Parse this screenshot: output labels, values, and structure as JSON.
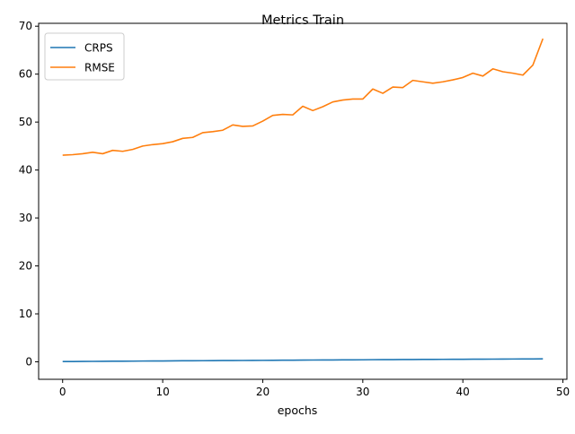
{
  "chart_data": {
    "type": "line",
    "title": "Metrics Train",
    "xlabel": "epochs",
    "ylabel": "",
    "xlim": [
      -2.4,
      50.4
    ],
    "ylim": [
      -3.65,
      70.6
    ],
    "xticks": [
      0,
      10,
      20,
      30,
      40,
      50
    ],
    "yticks": [
      0,
      10,
      20,
      30,
      40,
      50,
      60,
      70
    ],
    "grid": false,
    "legend_position": "top-left",
    "x": [
      0,
      1,
      2,
      3,
      4,
      5,
      6,
      7,
      8,
      9,
      10,
      11,
      12,
      13,
      14,
      15,
      16,
      17,
      18,
      19,
      20,
      21,
      22,
      23,
      24,
      25,
      26,
      27,
      28,
      29,
      30,
      31,
      32,
      33,
      34,
      35,
      36,
      37,
      38,
      39,
      40,
      41,
      42,
      43,
      44,
      45,
      46,
      47,
      48
    ],
    "series": [
      {
        "name": "CRPS",
        "color": "#1f77b4",
        "values": [
          0.05,
          0.06,
          0.08,
          0.09,
          0.1,
          0.12,
          0.13,
          0.14,
          0.16,
          0.17,
          0.18,
          0.2,
          0.21,
          0.22,
          0.23,
          0.24,
          0.26,
          0.27,
          0.28,
          0.29,
          0.3,
          0.32,
          0.33,
          0.34,
          0.36,
          0.37,
          0.38,
          0.39,
          0.4,
          0.41,
          0.42,
          0.44,
          0.45,
          0.46,
          0.47,
          0.48,
          0.49,
          0.5,
          0.51,
          0.52,
          0.53,
          0.55,
          0.55,
          0.56,
          0.57,
          0.58,
          0.59,
          0.6,
          0.62
        ]
      },
      {
        "name": "RMSE",
        "color": "#ff7f0e",
        "values": [
          43.1,
          43.2,
          43.4,
          43.7,
          43.4,
          44.1,
          43.9,
          44.3,
          45.0,
          45.3,
          45.5,
          45.9,
          46.6,
          46.8,
          47.8,
          48.0,
          48.3,
          49.4,
          49.1,
          49.2,
          50.2,
          51.4,
          51.6,
          51.5,
          53.3,
          52.4,
          53.2,
          54.2,
          54.6,
          54.8,
          54.8,
          56.9,
          56.0,
          57.3,
          57.2,
          58.7,
          58.4,
          58.1,
          58.4,
          58.8,
          59.3,
          60.2,
          59.6,
          61.1,
          60.5,
          60.2,
          59.8,
          61.9,
          67.4
        ]
      }
    ]
  }
}
